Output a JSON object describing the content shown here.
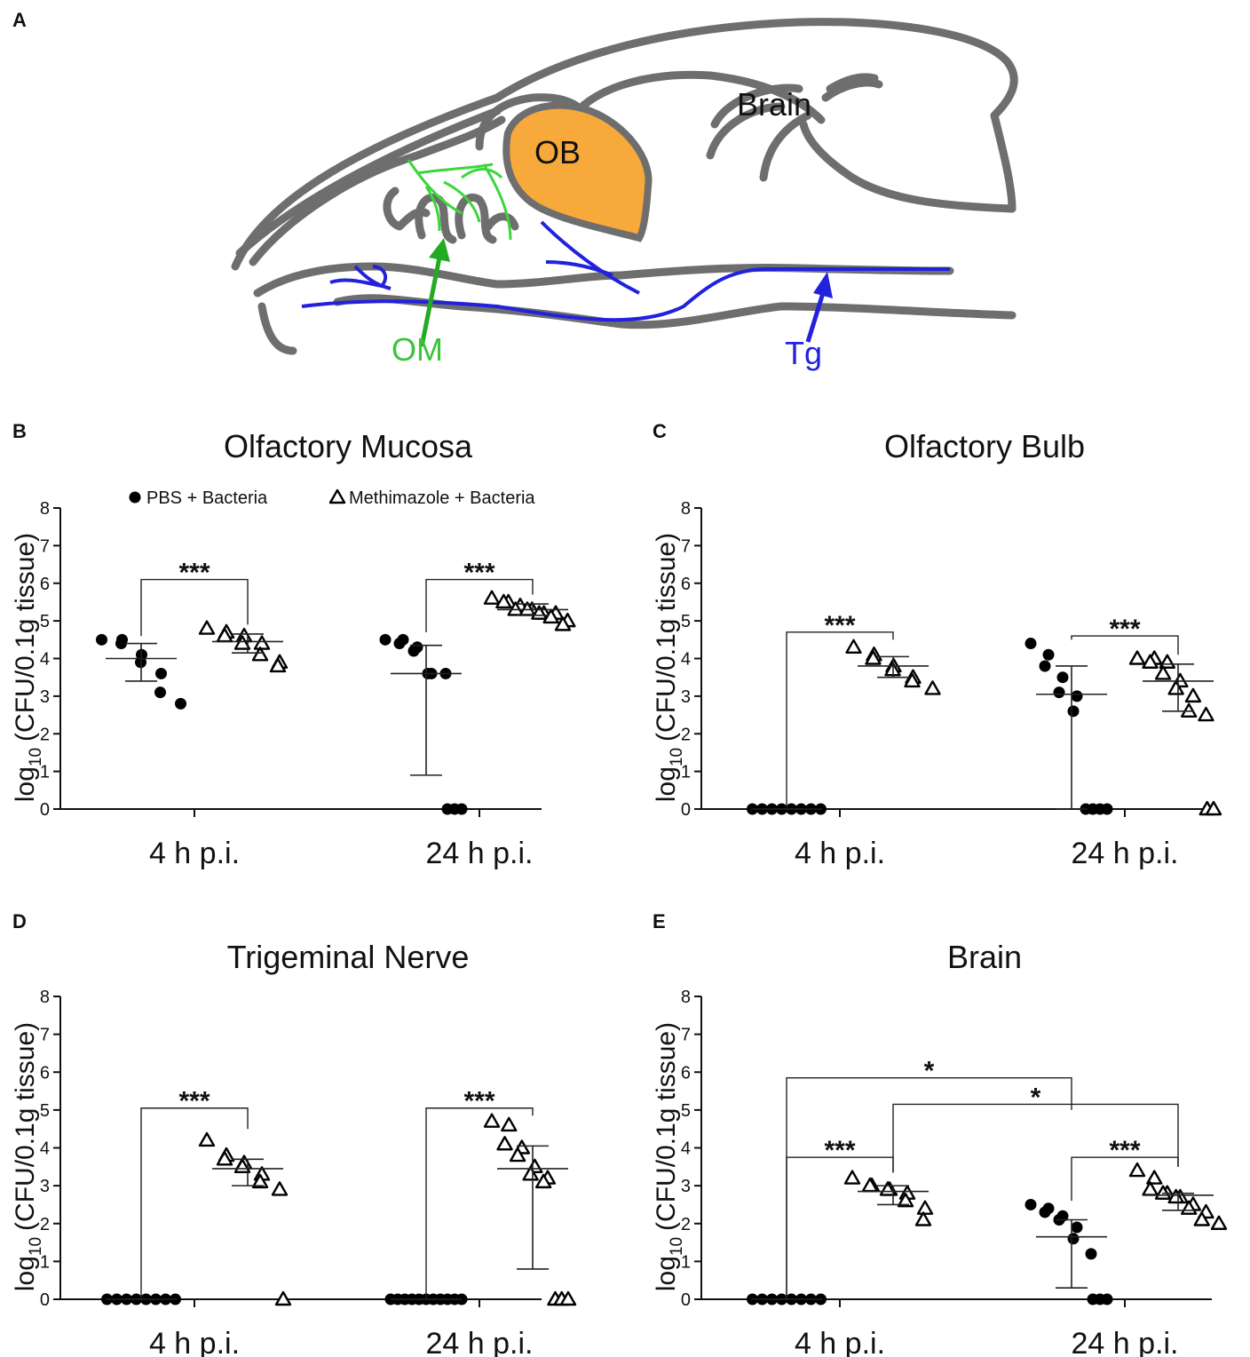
{
  "diagram": {
    "panel_label": "A",
    "labels": [
      {
        "text": "Brain"
      },
      {
        "text": "OB"
      },
      {
        "text": "OM"
      },
      {
        "text": "Tg"
      }
    ]
  },
  "chart_data": [
    {
      "type": "dot",
      "panel_label": "B",
      "title": "Olfactory Mucosa",
      "ylabel": {
        "main": "log",
        "sub": "10",
        "rest": "(CFU/0.1g tissue)"
      },
      "categories": [
        "4 h p.i.",
        "24 h p.i."
      ],
      "ylim": [
        0,
        8
      ],
      "yticks": [
        0,
        1,
        2,
        3,
        4,
        5,
        6,
        7,
        8
      ],
      "legend": true,
      "series": [
        {
          "name": "PBS + Bacteria",
          "marker": "circle",
          "color": "#000000",
          "values": [
            [
              4.5,
              4.5,
              4.4,
              4.1,
              3.9,
              3.6,
              3.1,
              2.8
            ],
            [
              4.5,
              4.5,
              4.4,
              4.3,
              4.2,
              3.6,
              3.6,
              3.6,
              0,
              0,
              0
            ]
          ],
          "medians": [
            4.0,
            3.6
          ],
          "iqr": [
            [
              3.4,
              4.4
            ],
            [
              0.9,
              4.35
            ]
          ]
        },
        {
          "name": "Methimazole + Bacteria",
          "marker": "triangle",
          "color": "#000000",
          "values": [
            [
              4.8,
              4.7,
              4.6,
              4.6,
              4.4,
              4.4,
              4.1,
              3.9,
              3.8
            ],
            [
              5.6,
              5.5,
              5.5,
              5.4,
              5.3,
              5.3,
              5.3,
              5.2,
              5.2,
              5.2,
              5.1,
              5.0,
              4.9
            ]
          ],
          "medians": [
            4.45,
            5.3
          ],
          "iqr": [
            [
              4.15,
              4.65
            ],
            [
              5.15,
              5.45
            ]
          ]
        }
      ],
      "brackets": [
        {
          "label": "***",
          "from": [
            0,
            0
          ],
          "to": [
            0,
            1
          ],
          "y": 6.1,
          "ends": [
            4.6,
            4.9
          ]
        },
        {
          "label": "***",
          "from": [
            1,
            0
          ],
          "to": [
            1,
            1
          ],
          "y": 6.1,
          "ends": [
            4.7,
            5.7
          ]
        }
      ]
    },
    {
      "type": "dot",
      "panel_label": "C",
      "title": "Olfactory Bulb",
      "ylabel": {
        "main": "log",
        "sub": "10",
        "rest": "(CFU/0.1g tissue)"
      },
      "categories": [
        "4 h p.i.",
        "24 h p.i."
      ],
      "ylim": [
        0,
        8
      ],
      "yticks": [
        0,
        1,
        2,
        3,
        4,
        5,
        6,
        7,
        8
      ],
      "series": [
        {
          "marker": "circle",
          "color": "#000000",
          "values": [
            [
              0,
              0,
              0,
              0,
              0,
              0,
              0,
              0
            ],
            [
              4.4,
              4.1,
              3.8,
              3.5,
              3.1,
              3.0,
              2.6,
              0,
              0,
              0,
              0
            ]
          ],
          "medians": [
            0,
            3.05
          ],
          "iqr": [
            [
              0,
              0
            ],
            [
              0,
              3.8
            ]
          ]
        },
        {
          "marker": "triangle",
          "color": "#000000",
          "values": [
            [
              4.3,
              4.1,
              4.0,
              3.8,
              3.7,
              3.5,
              3.4,
              3.2
            ],
            [
              4.0,
              4.0,
              3.9,
              3.9,
              3.6,
              3.4,
              3.2,
              3.0,
              2.6,
              2.5,
              0,
              0
            ]
          ],
          "medians": [
            3.8,
            3.4
          ],
          "iqr": [
            [
              3.5,
              4.05
            ],
            [
              2.6,
              3.85
            ]
          ]
        }
      ],
      "brackets": [
        {
          "label": "***",
          "from": [
            0,
            0
          ],
          "to": [
            0,
            1
          ],
          "y": 4.7,
          "ends": [
            0,
            4.5
          ]
        },
        {
          "label": "***",
          "from": [
            1,
            0
          ],
          "to": [
            1,
            1
          ],
          "y": 4.6,
          "ends": [
            4.5,
            4.1
          ]
        }
      ]
    },
    {
      "type": "dot",
      "panel_label": "D",
      "title": "Trigeminal Nerve",
      "ylabel": {
        "main": "log",
        "sub": "10",
        "rest": "(CFU/0.1g tissue)"
      },
      "categories": [
        "4 h p.i.",
        "24 h p.i."
      ],
      "ylim": [
        0,
        8
      ],
      "yticks": [
        0,
        1,
        2,
        3,
        4,
        5,
        6,
        7,
        8
      ],
      "series": [
        {
          "marker": "circle",
          "color": "#000000",
          "values": [
            [
              0,
              0,
              0,
              0,
              0,
              0,
              0,
              0
            ],
            [
              0,
              0,
              0,
              0,
              0,
              0,
              0,
              0,
              0,
              0,
              0
            ]
          ],
          "medians": [
            0,
            0
          ],
          "iqr": [
            [
              0,
              0
            ],
            [
              0,
              0
            ]
          ]
        },
        {
          "marker": "triangle",
          "color": "#000000",
          "values": [
            [
              4.2,
              3.8,
              3.7,
              3.6,
              3.5,
              3.3,
              3.1,
              2.9,
              0
            ],
            [
              4.7,
              4.6,
              4.1,
              4.0,
              3.8,
              3.5,
              3.3,
              3.2,
              3.1,
              0,
              0,
              0
            ]
          ],
          "medians": [
            3.45,
            3.45
          ],
          "iqr": [
            [
              3.0,
              3.7
            ],
            [
              0.8,
              4.05
            ]
          ]
        }
      ],
      "brackets": [
        {
          "label": "***",
          "from": [
            0,
            0
          ],
          "to": [
            0,
            1
          ],
          "y": 5.05,
          "ends": [
            0,
            4.5
          ]
        },
        {
          "label": "***",
          "from": [
            1,
            0
          ],
          "to": [
            1,
            1
          ],
          "y": 5.05,
          "ends": [
            0,
            4.85
          ]
        }
      ]
    },
    {
      "type": "dot",
      "panel_label": "E",
      "title": "Brain",
      "ylabel": {
        "main": "log",
        "sub": "10",
        "rest": "(CFU/0.1g tissue)"
      },
      "categories": [
        "4 h p.i.",
        "24 h p.i."
      ],
      "ylim": [
        0,
        8
      ],
      "yticks": [
        0,
        1,
        2,
        3,
        4,
        5,
        6,
        7,
        8
      ],
      "series": [
        {
          "marker": "circle",
          "color": "#000000",
          "values": [
            [
              0,
              0,
              0,
              0,
              0,
              0,
              0,
              0
            ],
            [
              2.5,
              2.4,
              2.3,
              2.2,
              2.1,
              1.9,
              1.6,
              1.2,
              0,
              0,
              0
            ]
          ],
          "medians": [
            0,
            1.65
          ],
          "iqr": [
            [
              0,
              0
            ],
            [
              0.3,
              2.1
            ]
          ]
        },
        {
          "marker": "triangle",
          "color": "#000000",
          "values": [
            [
              3.2,
              3.0,
              3.0,
              2.9,
              2.9,
              2.8,
              2.6,
              2.4,
              2.1
            ],
            [
              3.4,
              3.2,
              2.9,
              2.8,
              2.8,
              2.7,
              2.7,
              2.5,
              2.4,
              2.3,
              2.1,
              2.0
            ]
          ],
          "medians": [
            2.85,
            2.75
          ],
          "iqr": [
            [
              2.5,
              3.0
            ],
            [
              2.35,
              2.8
            ]
          ]
        }
      ],
      "brackets": [
        {
          "label": "***",
          "from": [
            0,
            0
          ],
          "to": [
            0,
            1
          ],
          "y": 3.75,
          "ends": [
            0,
            3.35
          ]
        },
        {
          "label": "***",
          "from": [
            1,
            0
          ],
          "to": [
            1,
            1
          ],
          "y": 3.75,
          "ends": [
            2.6,
            3.5
          ]
        },
        {
          "label": "*",
          "from": [
            0,
            0
          ],
          "to": [
            1,
            0
          ],
          "y": 5.85,
          "ends": [
            0,
            5.0
          ]
        },
        {
          "label": "*",
          "from": [
            0,
            1
          ],
          "to": [
            1,
            1
          ],
          "y": 5.15,
          "ends": [
            3.35,
            3.5
          ]
        }
      ]
    }
  ]
}
